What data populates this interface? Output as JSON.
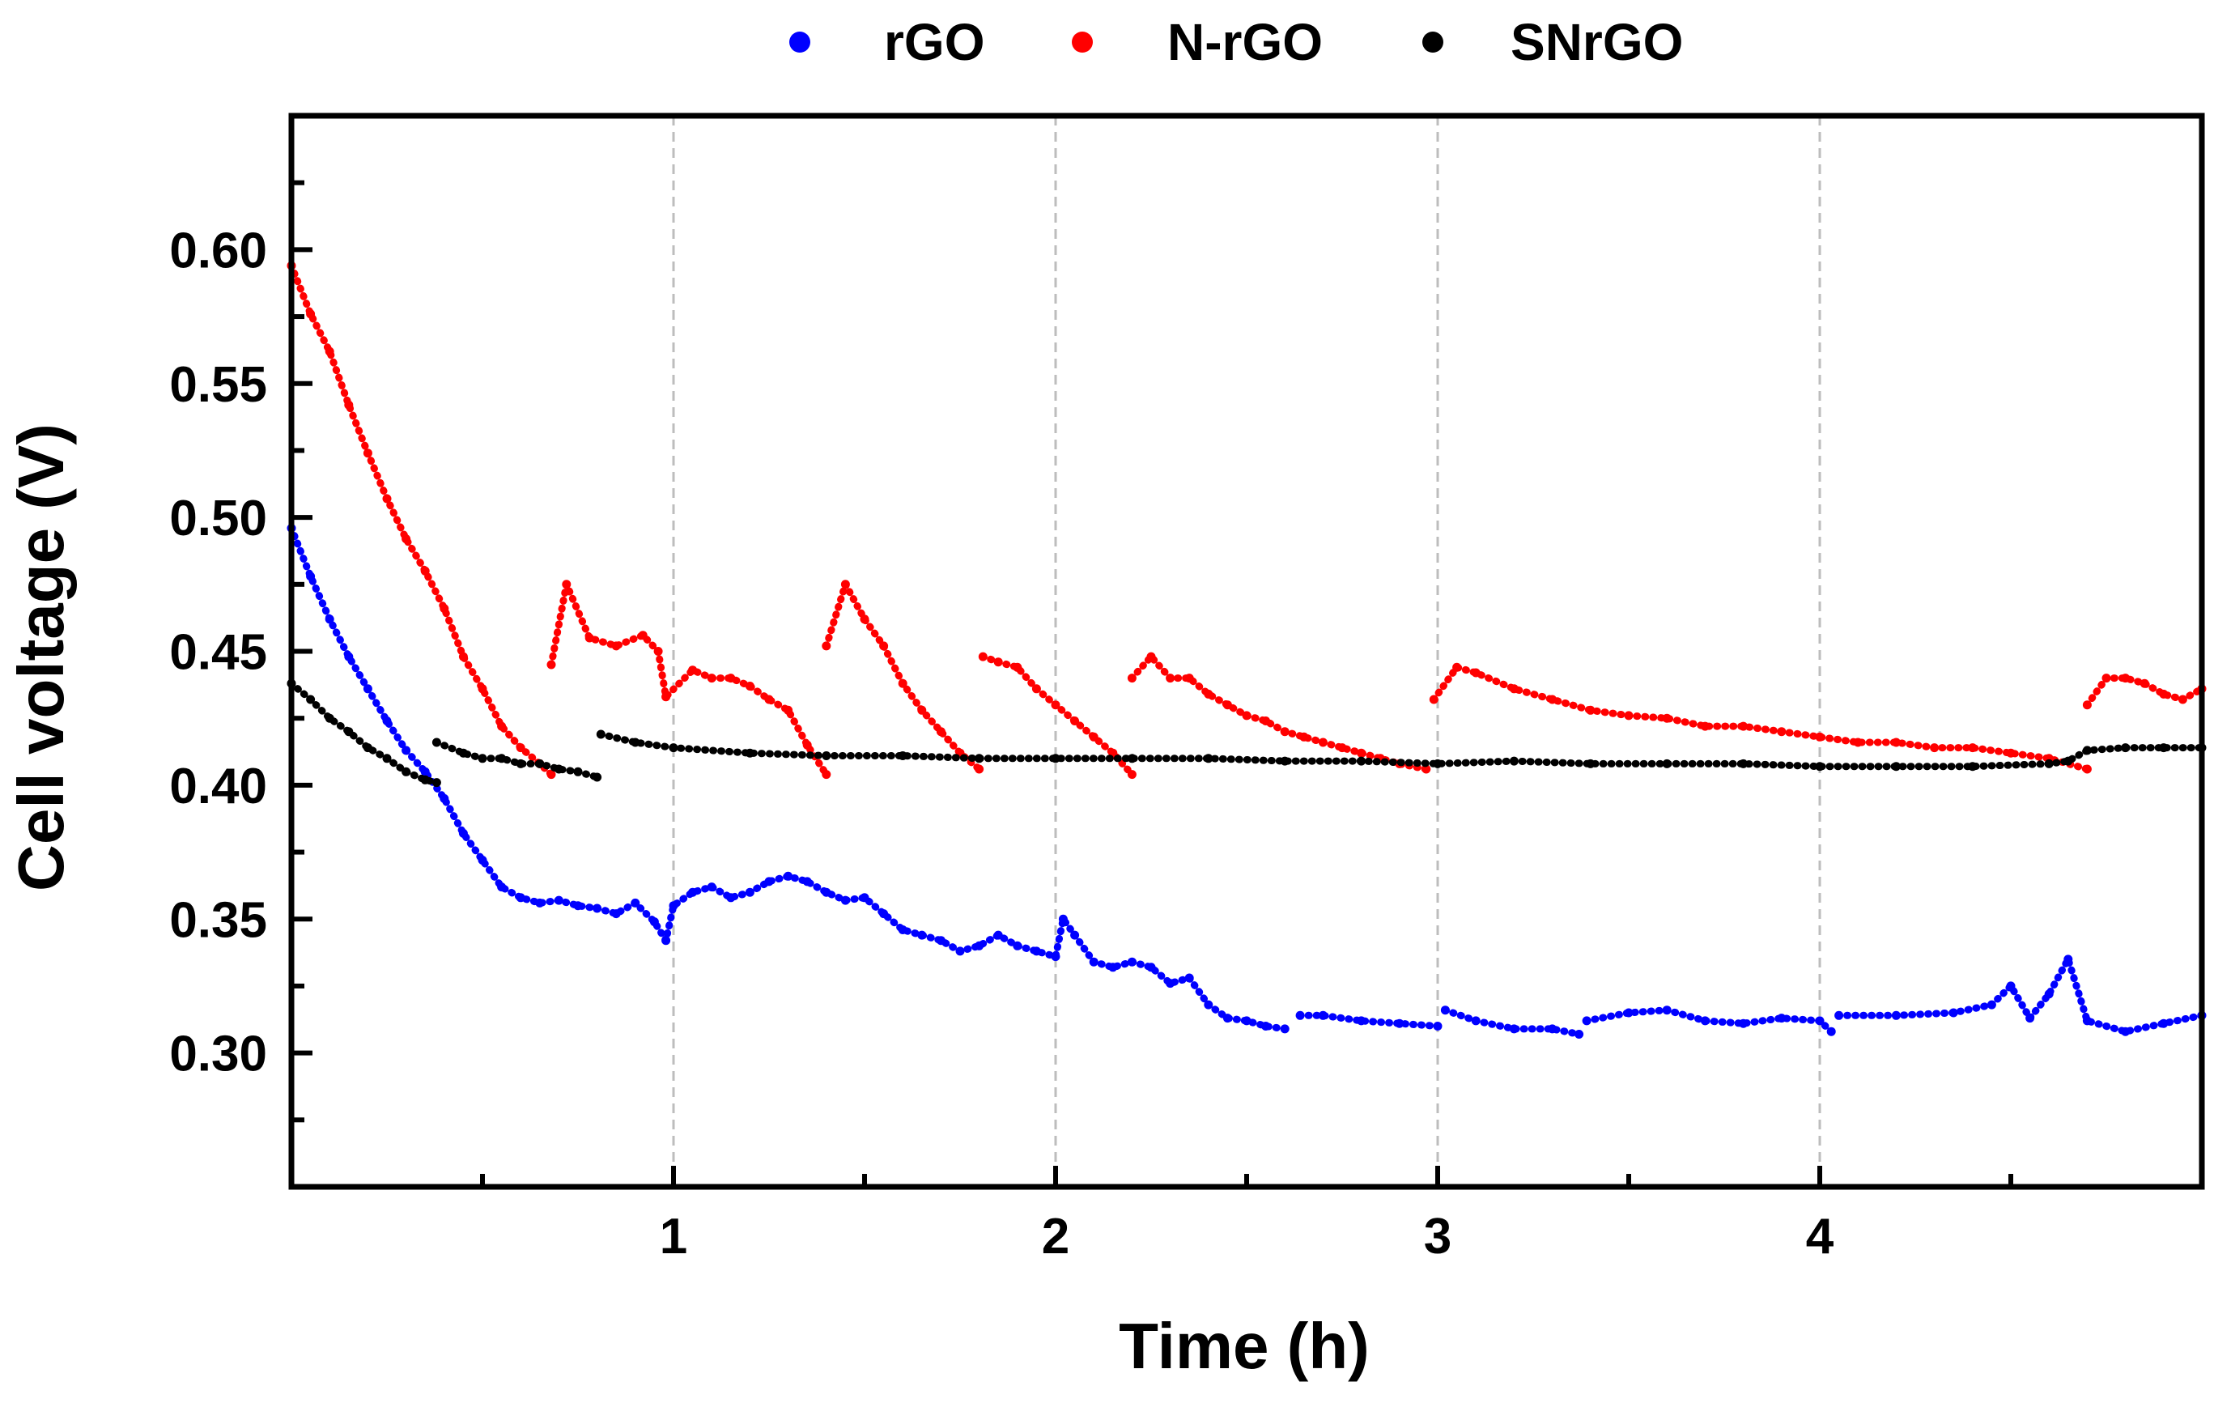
{
  "chart_data": {
    "type": "scatter",
    "title": "",
    "xlabel": "Time (h)",
    "ylabel": "Cell voltage (V)",
    "xlim": [
      0,
      5
    ],
    "ylim": [
      0.25,
      0.65
    ],
    "x_ticks": [
      {
        "value": 1,
        "label": "1"
      },
      {
        "value": 2,
        "label": "2"
      },
      {
        "value": 3,
        "label": "3"
      },
      {
        "value": 4,
        "label": "4"
      }
    ],
    "y_ticks": [
      {
        "value": 0.3,
        "label": "0.30"
      },
      {
        "value": 0.35,
        "label": "0.35"
      },
      {
        "value": 0.4,
        "label": "0.40"
      },
      {
        "value": 0.45,
        "label": "0.45"
      },
      {
        "value": 0.5,
        "label": "0.50"
      },
      {
        "value": 0.55,
        "label": "0.55"
      },
      {
        "value": 0.6,
        "label": "0.60"
      }
    ],
    "grid": "vertical dashed at major x ticks",
    "legend_position": "top-center",
    "series": [
      {
        "name": "rGO",
        "color": "#0000ff",
        "segments": [
          [
            [
              0.0,
              0.496
            ],
            [
              0.05,
              0.478
            ],
            [
              0.1,
              0.462
            ],
            [
              0.15,
              0.448
            ],
            [
              0.2,
              0.436
            ],
            [
              0.25,
              0.424
            ],
            [
              0.3,
              0.413
            ],
            [
              0.35,
              0.405
            ],
            [
              0.4,
              0.395
            ],
            [
              0.45,
              0.382
            ],
            [
              0.5,
              0.372
            ],
            [
              0.55,
              0.362
            ],
            [
              0.6,
              0.358
            ],
            [
              0.65,
              0.356
            ],
            [
              0.7,
              0.357
            ],
            [
              0.75,
              0.355
            ],
            [
              0.8,
              0.354
            ],
            [
              0.85,
              0.352
            ],
            [
              0.9,
              0.356
            ],
            [
              0.95,
              0.349
            ],
            [
              0.98,
              0.342
            ],
            [
              1.0,
              0.355
            ],
            [
              1.05,
              0.36
            ],
            [
              1.1,
              0.362
            ],
            [
              1.15,
              0.358
            ],
            [
              1.2,
              0.36
            ],
            [
              1.25,
              0.364
            ],
            [
              1.3,
              0.366
            ],
            [
              1.35,
              0.364
            ],
            [
              1.4,
              0.36
            ],
            [
              1.45,
              0.357
            ],
            [
              1.5,
              0.358
            ],
            [
              1.55,
              0.352
            ],
            [
              1.6,
              0.346
            ],
            [
              1.65,
              0.344
            ],
            [
              1.7,
              0.342
            ],
            [
              1.75,
              0.338
            ],
            [
              1.8,
              0.34
            ],
            [
              1.85,
              0.344
            ],
            [
              1.9,
              0.34
            ],
            [
              1.95,
              0.338
            ],
            [
              2.0,
              0.336
            ],
            [
              2.02,
              0.35
            ],
            [
              2.05,
              0.344
            ],
            [
              2.1,
              0.334
            ],
            [
              2.15,
              0.332
            ],
            [
              2.2,
              0.334
            ],
            [
              2.25,
              0.332
            ],
            [
              2.3,
              0.326
            ],
            [
              2.35,
              0.328
            ],
            [
              2.4,
              0.318
            ],
            [
              2.45,
              0.313
            ],
            [
              2.5,
              0.312
            ],
            [
              2.55,
              0.31
            ],
            [
              2.6,
              0.309
            ]
          ],
          [
            [
              2.64,
              0.314
            ],
            [
              2.7,
              0.314
            ],
            [
              2.8,
              0.312
            ],
            [
              2.9,
              0.311
            ],
            [
              3.0,
              0.31
            ]
          ],
          [
            [
              3.02,
              0.316
            ],
            [
              3.1,
              0.312
            ],
            [
              3.2,
              0.309
            ],
            [
              3.3,
              0.309
            ],
            [
              3.37,
              0.307
            ]
          ],
          [
            [
              3.39,
              0.312
            ],
            [
              3.5,
              0.315
            ],
            [
              3.6,
              0.316
            ],
            [
              3.7,
              0.312
            ],
            [
              3.8,
              0.311
            ],
            [
              3.9,
              0.313
            ],
            [
              4.0,
              0.312
            ],
            [
              4.03,
              0.308
            ]
          ],
          [
            [
              4.05,
              0.314
            ],
            [
              4.2,
              0.314
            ],
            [
              4.35,
              0.315
            ],
            [
              4.45,
              0.318
            ],
            [
              4.5,
              0.325
            ],
            [
              4.55,
              0.313
            ],
            [
              4.6,
              0.322
            ],
            [
              4.65,
              0.335
            ],
            [
              4.7,
              0.312
            ],
            [
              4.8,
              0.308
            ],
            [
              4.9,
              0.311
            ],
            [
              5.0,
              0.314
            ]
          ]
        ]
      },
      {
        "name": "N-rGO",
        "color": "#ff0000",
        "segments": [
          [
            [
              0.0,
              0.594
            ],
            [
              0.05,
              0.576
            ],
            [
              0.1,
              0.562
            ],
            [
              0.15,
              0.542
            ],
            [
              0.2,
              0.524
            ],
            [
              0.25,
              0.507
            ],
            [
              0.3,
              0.492
            ],
            [
              0.35,
              0.48
            ],
            [
              0.4,
              0.466
            ],
            [
              0.45,
              0.448
            ],
            [
              0.5,
              0.436
            ],
            [
              0.55,
              0.422
            ],
            [
              0.6,
              0.414
            ],
            [
              0.65,
              0.408
            ],
            [
              0.68,
              0.404
            ]
          ],
          [
            [
              0.68,
              0.445
            ],
            [
              0.72,
              0.475
            ],
            [
              0.78,
              0.455
            ],
            [
              0.85,
              0.452
            ],
            [
              0.92,
              0.456
            ],
            [
              0.96,
              0.45
            ],
            [
              0.98,
              0.433
            ],
            [
              1.05,
              0.443
            ],
            [
              1.1,
              0.44
            ],
            [
              1.15,
              0.44
            ],
            [
              1.2,
              0.437
            ],
            [
              1.25,
              0.432
            ],
            [
              1.3,
              0.428
            ],
            [
              1.35,
              0.415
            ],
            [
              1.4,
              0.404
            ]
          ],
          [
            [
              1.4,
              0.452
            ],
            [
              1.45,
              0.475
            ],
            [
              1.5,
              0.462
            ],
            [
              1.55,
              0.452
            ],
            [
              1.6,
              0.438
            ],
            [
              1.65,
              0.428
            ],
            [
              1.7,
              0.42
            ],
            [
              1.75,
              0.412
            ],
            [
              1.8,
              0.406
            ]
          ],
          [
            [
              1.81,
              0.448
            ],
            [
              1.85,
              0.446
            ],
            [
              1.9,
              0.444
            ],
            [
              1.95,
              0.436
            ],
            [
              2.0,
              0.43
            ],
            [
              2.05,
              0.424
            ],
            [
              2.1,
              0.418
            ],
            [
              2.15,
              0.412
            ],
            [
              2.2,
              0.404
            ]
          ],
          [
            [
              2.2,
              0.44
            ],
            [
              2.25,
              0.448
            ],
            [
              2.3,
              0.44
            ],
            [
              2.35,
              0.44
            ],
            [
              2.4,
              0.434
            ],
            [
              2.45,
              0.43
            ],
            [
              2.5,
              0.426
            ],
            [
              2.55,
              0.424
            ],
            [
              2.6,
              0.42
            ],
            [
              2.65,
              0.418
            ],
            [
              2.7,
              0.416
            ],
            [
              2.75,
              0.414
            ],
            [
              2.8,
              0.412
            ],
            [
              2.85,
              0.41
            ],
            [
              2.9,
              0.408
            ],
            [
              2.97,
              0.406
            ]
          ],
          [
            [
              2.99,
              0.432
            ],
            [
              3.05,
              0.444
            ],
            [
              3.1,
              0.442
            ],
            [
              3.2,
              0.436
            ],
            [
              3.3,
              0.432
            ],
            [
              3.4,
              0.428
            ],
            [
              3.5,
              0.426
            ],
            [
              3.6,
              0.425
            ],
            [
              3.7,
              0.422
            ],
            [
              3.8,
              0.422
            ],
            [
              3.9,
              0.42
            ],
            [
              4.0,
              0.418
            ],
            [
              4.1,
              0.416
            ],
            [
              4.2,
              0.416
            ],
            [
              4.3,
              0.414
            ],
            [
              4.4,
              0.414
            ],
            [
              4.5,
              0.412
            ],
            [
              4.6,
              0.41
            ],
            [
              4.7,
              0.406
            ]
          ],
          [
            [
              4.7,
              0.43
            ],
            [
              4.75,
              0.44
            ],
            [
              4.8,
              0.44
            ],
            [
              4.85,
              0.438
            ],
            [
              4.9,
              0.434
            ],
            [
              4.95,
              0.432
            ],
            [
              5.0,
              0.436
            ]
          ]
        ]
      },
      {
        "name": "SNrGO",
        "color": "#000000",
        "segments": [
          [
            [
              0.0,
              0.438
            ],
            [
              0.05,
              0.432
            ],
            [
              0.1,
              0.425
            ],
            [
              0.15,
              0.42
            ],
            [
              0.2,
              0.414
            ],
            [
              0.25,
              0.41
            ],
            [
              0.3,
              0.405
            ],
            [
              0.35,
              0.402
            ],
            [
              0.38,
              0.401
            ]
          ],
          [
            [
              0.38,
              0.416
            ],
            [
              0.45,
              0.412
            ],
            [
              0.5,
              0.41
            ],
            [
              0.55,
              0.41
            ],
            [
              0.6,
              0.408
            ],
            [
              0.65,
              0.408
            ],
            [
              0.7,
              0.406
            ],
            [
              0.75,
              0.405
            ],
            [
              0.8,
              0.403
            ]
          ],
          [
            [
              0.81,
              0.419
            ],
            [
              0.9,
              0.416
            ],
            [
              1.0,
              0.414
            ],
            [
              1.2,
              0.412
            ],
            [
              1.4,
              0.411
            ],
            [
              1.6,
              0.411
            ],
            [
              1.8,
              0.41
            ],
            [
              2.0,
              0.41
            ],
            [
              2.2,
              0.41
            ],
            [
              2.4,
              0.41
            ],
            [
              2.6,
              0.409
            ],
            [
              2.8,
              0.409
            ],
            [
              3.0,
              0.408
            ],
            [
              3.2,
              0.409
            ],
            [
              3.4,
              0.408
            ],
            [
              3.6,
              0.408
            ],
            [
              3.8,
              0.408
            ],
            [
              4.0,
              0.407
            ],
            [
              4.2,
              0.407
            ],
            [
              4.4,
              0.407
            ],
            [
              4.6,
              0.408
            ],
            [
              4.65,
              0.409
            ],
            [
              4.7,
              0.413
            ],
            [
              4.8,
              0.414
            ],
            [
              4.9,
              0.414
            ],
            [
              5.0,
              0.414
            ]
          ]
        ]
      }
    ]
  }
}
